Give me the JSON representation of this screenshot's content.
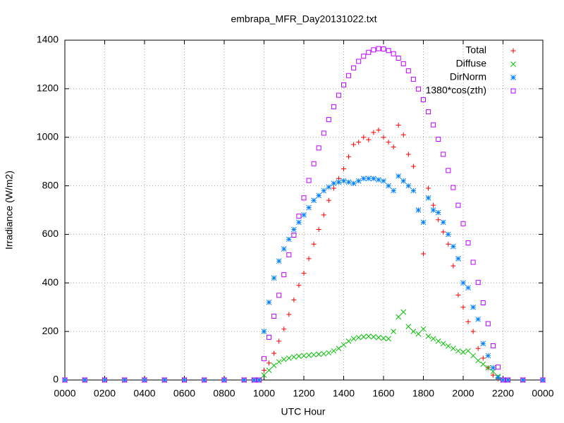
{
  "chart_data": {
    "type": "scatter",
    "title": "embrapa_MFR_Day20131022.txt",
    "x_label": "UTC Hour",
    "y_label": "Irradiance (W/m2)",
    "xlim": [
      0,
      24
    ],
    "ylim": [
      0,
      1400
    ],
    "xticks": [
      {
        "value": 0,
        "label": "0000"
      },
      {
        "value": 2,
        "label": "0200"
      },
      {
        "value": 4,
        "label": "0400"
      },
      {
        "value": 6,
        "label": "0600"
      },
      {
        "value": 8,
        "label": "0800"
      },
      {
        "value": 10,
        "label": "1000"
      },
      {
        "value": 12,
        "label": "1200"
      },
      {
        "value": 14,
        "label": "1400"
      },
      {
        "value": 16,
        "label": "1600"
      },
      {
        "value": 18,
        "label": "1800"
      },
      {
        "value": 20,
        "label": "2000"
      },
      {
        "value": 22,
        "label": "2200"
      },
      {
        "value": 24,
        "label": "0000"
      }
    ],
    "yticks": [
      0,
      200,
      400,
      600,
      800,
      1000,
      1200,
      1400
    ],
    "grid": true,
    "legend": "top-right",
    "x": [
      0,
      1,
      2,
      3,
      4,
      5,
      6,
      7,
      8,
      9,
      9.5,
      9.75,
      10,
      10.25,
      10.5,
      10.75,
      11,
      11.25,
      11.5,
      11.75,
      12,
      12.25,
      12.5,
      12.75,
      13,
      13.25,
      13.5,
      13.75,
      14,
      14.25,
      14.5,
      14.75,
      15,
      15.25,
      15.5,
      15.75,
      16,
      16.25,
      16.5,
      16.75,
      17,
      17.25,
      17.5,
      17.75,
      18,
      18.25,
      18.5,
      18.75,
      19,
      19.25,
      19.5,
      19.75,
      20,
      20.25,
      20.5,
      20.75,
      21,
      21.25,
      21.5,
      21.75,
      22,
      22.25,
      23,
      24
    ],
    "series": [
      {
        "name": "Total",
        "color": "#ff0000",
        "marker": "plus",
        "values": [
          0,
          0,
          0,
          0,
          0,
          0,
          0,
          0,
          0,
          0,
          0,
          0,
          40,
          70,
          110,
          160,
          210,
          270,
          330,
          390,
          440,
          500,
          560,
          620,
          680,
          740,
          790,
          830,
          870,
          920,
          970,
          980,
          1000,
          990,
          1020,
          1030,
          1000,
          980,
          960,
          1050,
          1010,
          930,
          880,
          700,
          520,
          790,
          720,
          660,
          610,
          560,
          470,
          350,
          300,
          240,
          200,
          130,
          90,
          50,
          20,
          5,
          0,
          0,
          0,
          0
        ]
      },
      {
        "name": "Diffuse",
        "color": "#00c000",
        "marker": "cross",
        "values": [
          0,
          0,
          0,
          0,
          0,
          0,
          0,
          0,
          0,
          0,
          0,
          0,
          20,
          40,
          60,
          75,
          85,
          90,
          95,
          98,
          100,
          102,
          104,
          106,
          108,
          112,
          120,
          130,
          145,
          160,
          170,
          175,
          178,
          180,
          178,
          175,
          172,
          170,
          200,
          260,
          280,
          220,
          200,
          190,
          210,
          180,
          170,
          160,
          150,
          140,
          130,
          120,
          115,
          120,
          100,
          80,
          65,
          50,
          35,
          15,
          0,
          0,
          0,
          0
        ]
      },
      {
        "name": "DirNorm",
        "color": "#0080ff",
        "marker": "star",
        "values": [
          0,
          0,
          0,
          0,
          0,
          0,
          0,
          0,
          0,
          0,
          0,
          0,
          200,
          320,
          420,
          490,
          540,
          580,
          620,
          650,
          680,
          710,
          740,
          760,
          780,
          795,
          810,
          815,
          820,
          815,
          810,
          820,
          830,
          830,
          830,
          825,
          820,
          800,
          780,
          840,
          820,
          800,
          780,
          700,
          650,
          750,
          700,
          690,
          650,
          600,
          550,
          500,
          400,
          380,
          300,
          250,
          150,
          100,
          50,
          10,
          0,
          0,
          0,
          0
        ]
      },
      {
        "name": "1380*cos(zth)",
        "color": "#c000ff",
        "marker": "square",
        "values": [
          0,
          0,
          0,
          0,
          0,
          0,
          0,
          0,
          0,
          0,
          0,
          0,
          88,
          176,
          263,
          349,
          434,
          516,
          597,
          675,
          750,
          822,
          891,
          956,
          1017,
          1073,
          1126,
          1173,
          1216,
          1254,
          1286,
          1313,
          1334,
          1350,
          1360,
          1365,
          1364,
          1357,
          1344,
          1326,
          1303,
          1274,
          1239,
          1199,
          1155,
          1105,
          1051,
          992,
          930,
          863,
          793,
          720,
          644,
          565,
          485,
          402,
          318,
          232,
          141,
          53,
          0,
          0,
          0,
          0
        ]
      }
    ]
  }
}
